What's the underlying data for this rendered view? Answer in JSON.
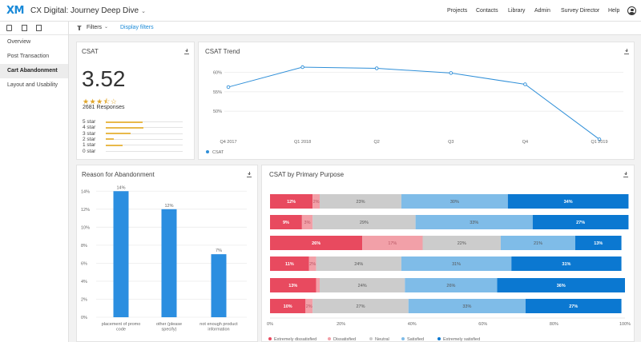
{
  "header": {
    "logo": "XM",
    "project_title": "CX Digital: Journey Deep Dive",
    "nav": [
      "Projects",
      "Contacts",
      "Library",
      "Admin",
      "Survey Director",
      "Help"
    ]
  },
  "sidebar": {
    "items": [
      {
        "label": "Overview",
        "active": false
      },
      {
        "label": "Post Transaction",
        "active": false
      },
      {
        "label": "Cart Abandonment",
        "active": true
      },
      {
        "label": "Layout and Usability",
        "active": false
      }
    ]
  },
  "filterbar": {
    "filters_label": "Filters",
    "display_filters": "Display filters"
  },
  "csat": {
    "title": "CSAT",
    "score": "3.52",
    "stars": "★★★⯪☆",
    "responses": "2681 Responses",
    "distribution": [
      {
        "label": "5 star",
        "fraction": 0.48
      },
      {
        "label": "4 star",
        "fraction": 0.49
      },
      {
        "label": "3 star",
        "fraction": 0.32
      },
      {
        "label": "2 star",
        "fraction": 0.1
      },
      {
        "label": "1 star",
        "fraction": 0.22
      },
      {
        "label": "0 star",
        "fraction": 0
      }
    ]
  },
  "csat_trend": {
    "title": "CSAT Trend",
    "legend": "CSAT",
    "color": "#2f8fd8"
  },
  "abandonment": {
    "title": "Reason for Abandonment",
    "color": "#2b8ee0"
  },
  "primary_purpose": {
    "title": "CSAT by Primary Purpose"
  },
  "chart_data": [
    {
      "type": "line",
      "title": "CSAT Trend",
      "x": [
        "Q4 2017",
        "Q1 2018",
        "Q2",
        "Q3",
        "Q4",
        "Q1 2019"
      ],
      "series": [
        {
          "name": "CSAT",
          "values": [
            56.2,
            61.3,
            61.0,
            59.8,
            56.9,
            42.8
          ]
        }
      ],
      "ylim": [
        40,
        65
      ],
      "yticks": [
        50,
        55,
        60
      ],
      "ytick_labels": [
        "50%",
        "55%",
        "60%"
      ],
      "grid": true,
      "legend": "bottom-left"
    },
    {
      "type": "bar",
      "title": "Reason for Abandonment",
      "categories": [
        "placement of promo code",
        "other (please specify)",
        "not enough product information"
      ],
      "values": [
        14,
        12,
        7
      ],
      "data_labels": [
        "14%",
        "12%",
        "7%"
      ],
      "ylim": [
        0,
        15
      ],
      "yticks": [
        0,
        2,
        4,
        6,
        8,
        10,
        12,
        14
      ],
      "ytick_labels": [
        "0%",
        "2%",
        "4%",
        "6%",
        "8%",
        "10%",
        "12%",
        "14%"
      ],
      "grid": true
    },
    {
      "type": "bar",
      "stacked": true,
      "orientation": "horizontal",
      "title": "CSAT by Primary Purpose",
      "categories": [
        "",
        "",
        "",
        "",
        "",
        ""
      ],
      "series": [
        {
          "name": "Extremely dissatisfied",
          "color": "#e84a5f",
          "values": [
            12,
            9,
            26,
            11,
            13,
            10
          ]
        },
        {
          "name": "Dissatisfied",
          "color": "#f2a0a8",
          "values": [
            2,
            3,
            17,
            2,
            1,
            2
          ]
        },
        {
          "name": "Neutral",
          "color": "#cccccc",
          "values": [
            23,
            29,
            22,
            24,
            24,
            27
          ]
        },
        {
          "name": "Satisfied",
          "color": "#7fbce8",
          "values": [
            30,
            33,
            21,
            31,
            26,
            33
          ]
        },
        {
          "name": "Extremely satisfied",
          "color": "#0b78d1",
          "values": [
            34,
            27,
            13,
            31,
            36,
            27
          ]
        }
      ],
      "value_labels": [
        [
          "12%",
          "2%",
          "23%",
          "30%",
          "34%"
        ],
        [
          "9%",
          "3%",
          "29%",
          "33%",
          "27%"
        ],
        [
          "26%",
          "17%",
          "22%",
          "21%",
          "13%"
        ],
        [
          "11%",
          "2%",
          "24%",
          "31%",
          "31%"
        ],
        [
          "13%",
          "",
          "24%",
          "26%",
          "36%"
        ],
        [
          "10%",
          "2%",
          "27%",
          "33%",
          "27%"
        ]
      ],
      "xlim": [
        0,
        100
      ],
      "xticks": [
        0,
        20,
        40,
        60,
        80,
        100
      ],
      "xtick_labels": [
        "0%",
        "20%",
        "40%",
        "60%",
        "80%",
        "100%"
      ],
      "legend": "bottom"
    }
  ]
}
